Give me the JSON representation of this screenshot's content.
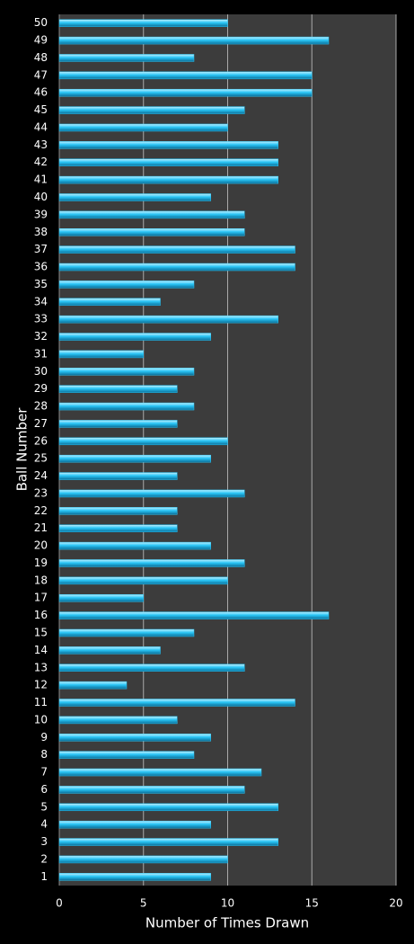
{
  "chart_data": {
    "type": "barh",
    "x_label": "Number of Times Drawn",
    "y_label": "Ball Number",
    "categories": [
      "1",
      "2",
      "3",
      "4",
      "5",
      "6",
      "7",
      "8",
      "9",
      "10",
      "11",
      "12",
      "13",
      "14",
      "15",
      "16",
      "17",
      "18",
      "19",
      "20",
      "21",
      "22",
      "23",
      "24",
      "25",
      "26",
      "27",
      "28",
      "29",
      "30",
      "31",
      "32",
      "33",
      "34",
      "35",
      "36",
      "37",
      "38",
      "39",
      "40",
      "41",
      "42",
      "43",
      "44",
      "45",
      "46",
      "47",
      "48",
      "49",
      "50"
    ],
    "values": [
      9,
      10,
      13,
      9,
      13,
      11,
      12,
      8,
      9,
      7,
      14,
      4,
      11,
      6,
      8,
      16,
      5,
      10,
      11,
      9,
      7,
      7,
      11,
      7,
      9,
      10,
      7,
      8,
      7,
      8,
      5,
      9,
      13,
      6,
      8,
      14,
      14,
      11,
      11,
      9,
      13,
      13,
      13,
      10,
      11,
      15,
      15,
      8,
      16,
      10
    ],
    "color": "#29c5f6",
    "xlim": [
      0,
      20
    ],
    "xticks": [
      0,
      5,
      10,
      15,
      20
    ],
    "grid": true
  }
}
